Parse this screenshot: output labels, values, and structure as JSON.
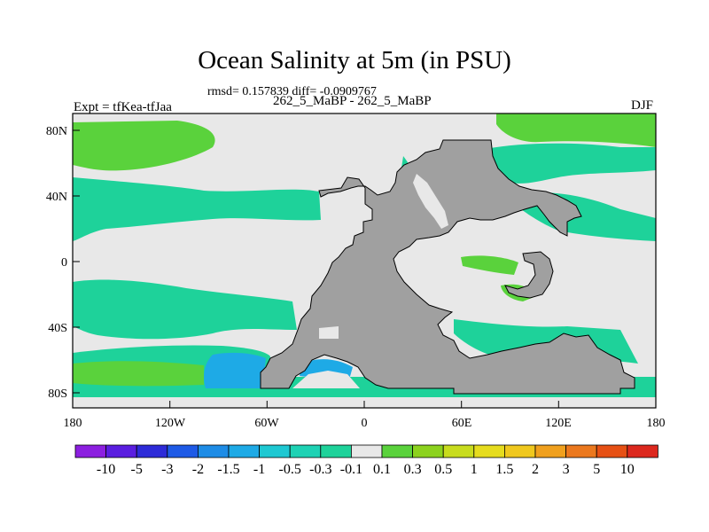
{
  "title": "Ocean Salinity at 5m (in PSU)",
  "stats_line": "rmsd= 0.157839 diff= -0.0909767",
  "subtitle": "262_5_MaBP - 262_5_MaBP",
  "left_label": "Expt = tfKea-tfJaa",
  "right_label": "DJF",
  "map": {
    "lon_ticks": [
      "180",
      "120W",
      "60W",
      "0",
      "60E",
      "120E",
      "180"
    ],
    "lat_ticks": [
      "80N",
      "40N",
      "0",
      "40S",
      "80S"
    ],
    "land_color": "#a0a0a0",
    "near_zero_color": "#e8e8e8"
  },
  "colorbar": {
    "labels": [
      "-10",
      "-5",
      "-3",
      "-2",
      "-1.5",
      "-1",
      "-0.5",
      "-0.3",
      "-0.1",
      "0.1",
      "0.3",
      "0.5",
      "1",
      "1.5",
      "2",
      "3",
      "5",
      "10"
    ],
    "colors": [
      "#8c1fe0",
      "#5a1ee0",
      "#2d2bd8",
      "#1e5ae6",
      "#1e8ce6",
      "#1eaae6",
      "#1ec8d2",
      "#1ed2b4",
      "#1ed29a",
      "#e8e8e8",
      "#5ad23c",
      "#8cd21e",
      "#c8dc1e",
      "#e6dc1e",
      "#f0c81e",
      "#f0a01e",
      "#eb781e",
      "#e65014",
      "#dc281e"
    ]
  }
}
